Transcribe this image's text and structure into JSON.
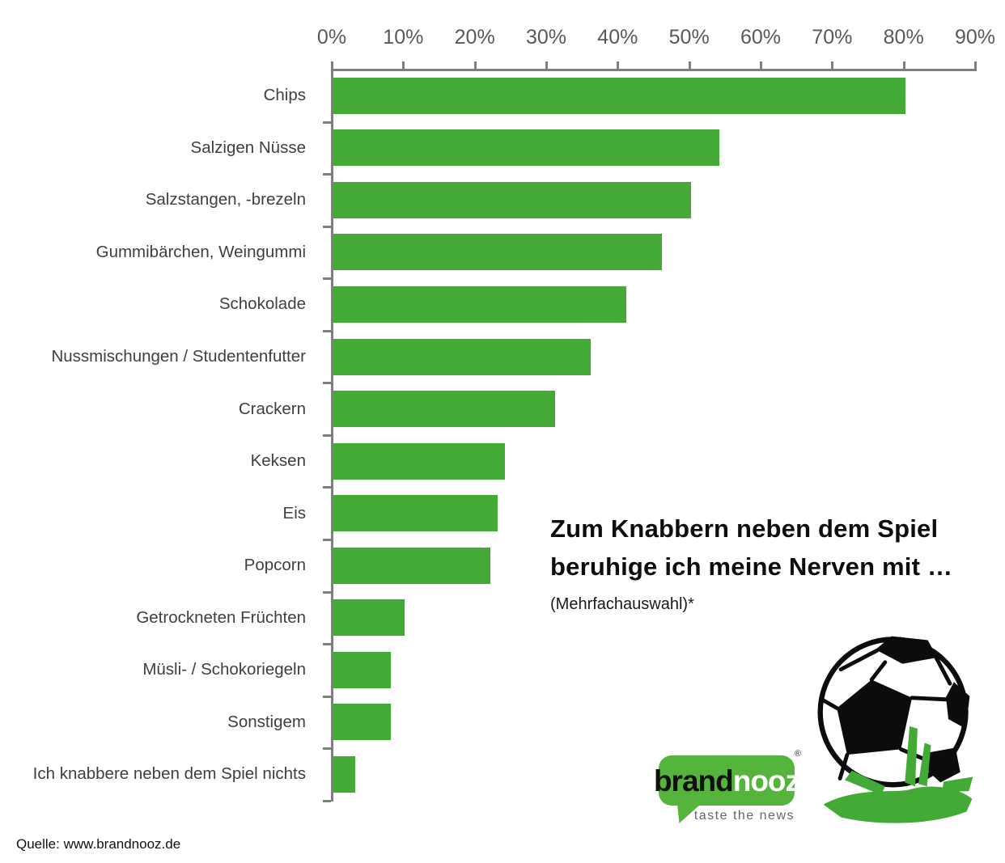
{
  "chart_data": {
    "type": "bar",
    "orientation": "horizontal",
    "title": "Zum Knabbern neben dem Spiel beruhige ich meine Nerven mit …",
    "title_lines": [
      "Zum Knabbern neben dem Spiel",
      "beruhige ich meine Nerven mit …"
    ],
    "subtitle": "(Mehrfachauswahl)*",
    "categories": [
      "Chips",
      "Salzigen Nüsse",
      "Salzstangen, -brezeln",
      "Gummibärchen, Weingummi",
      "Schokolade",
      "Nussmischungen / Studentenfutter",
      "Crackern",
      "Keksen",
      "Eis",
      "Popcorn",
      "Getrockneten Früchten",
      "Müsli- / Schokoriegeln",
      "Sonstigem",
      "Ich knabbere neben dem Spiel nichts"
    ],
    "values": [
      80,
      54,
      50,
      46,
      41,
      36,
      31,
      24,
      23,
      22,
      10,
      8,
      8,
      3
    ],
    "unit": "%",
    "axis": {
      "position": "top",
      "min": 0,
      "max": 90,
      "step": 10,
      "tick_labels": [
        "0%",
        "10%",
        "20%",
        "30%",
        "40%",
        "50%",
        "60%",
        "70%",
        "80%",
        "90%"
      ]
    },
    "grid": false,
    "legend": "none",
    "bar_color": "#43ab35"
  },
  "branding": {
    "brand": "brand",
    "nooz": "nooz",
    "reg": "®",
    "tagline": "taste the news"
  },
  "icons": {
    "football": "soccer-ball-on-grass-icon"
  },
  "colors": {
    "bar_green": "#43ab35",
    "logo_green": "#54b43c",
    "axis_gray": "#7f7f7f",
    "tick_label_gray": "#595959"
  },
  "source": {
    "label": "Quelle: www.brandnooz.de"
  }
}
